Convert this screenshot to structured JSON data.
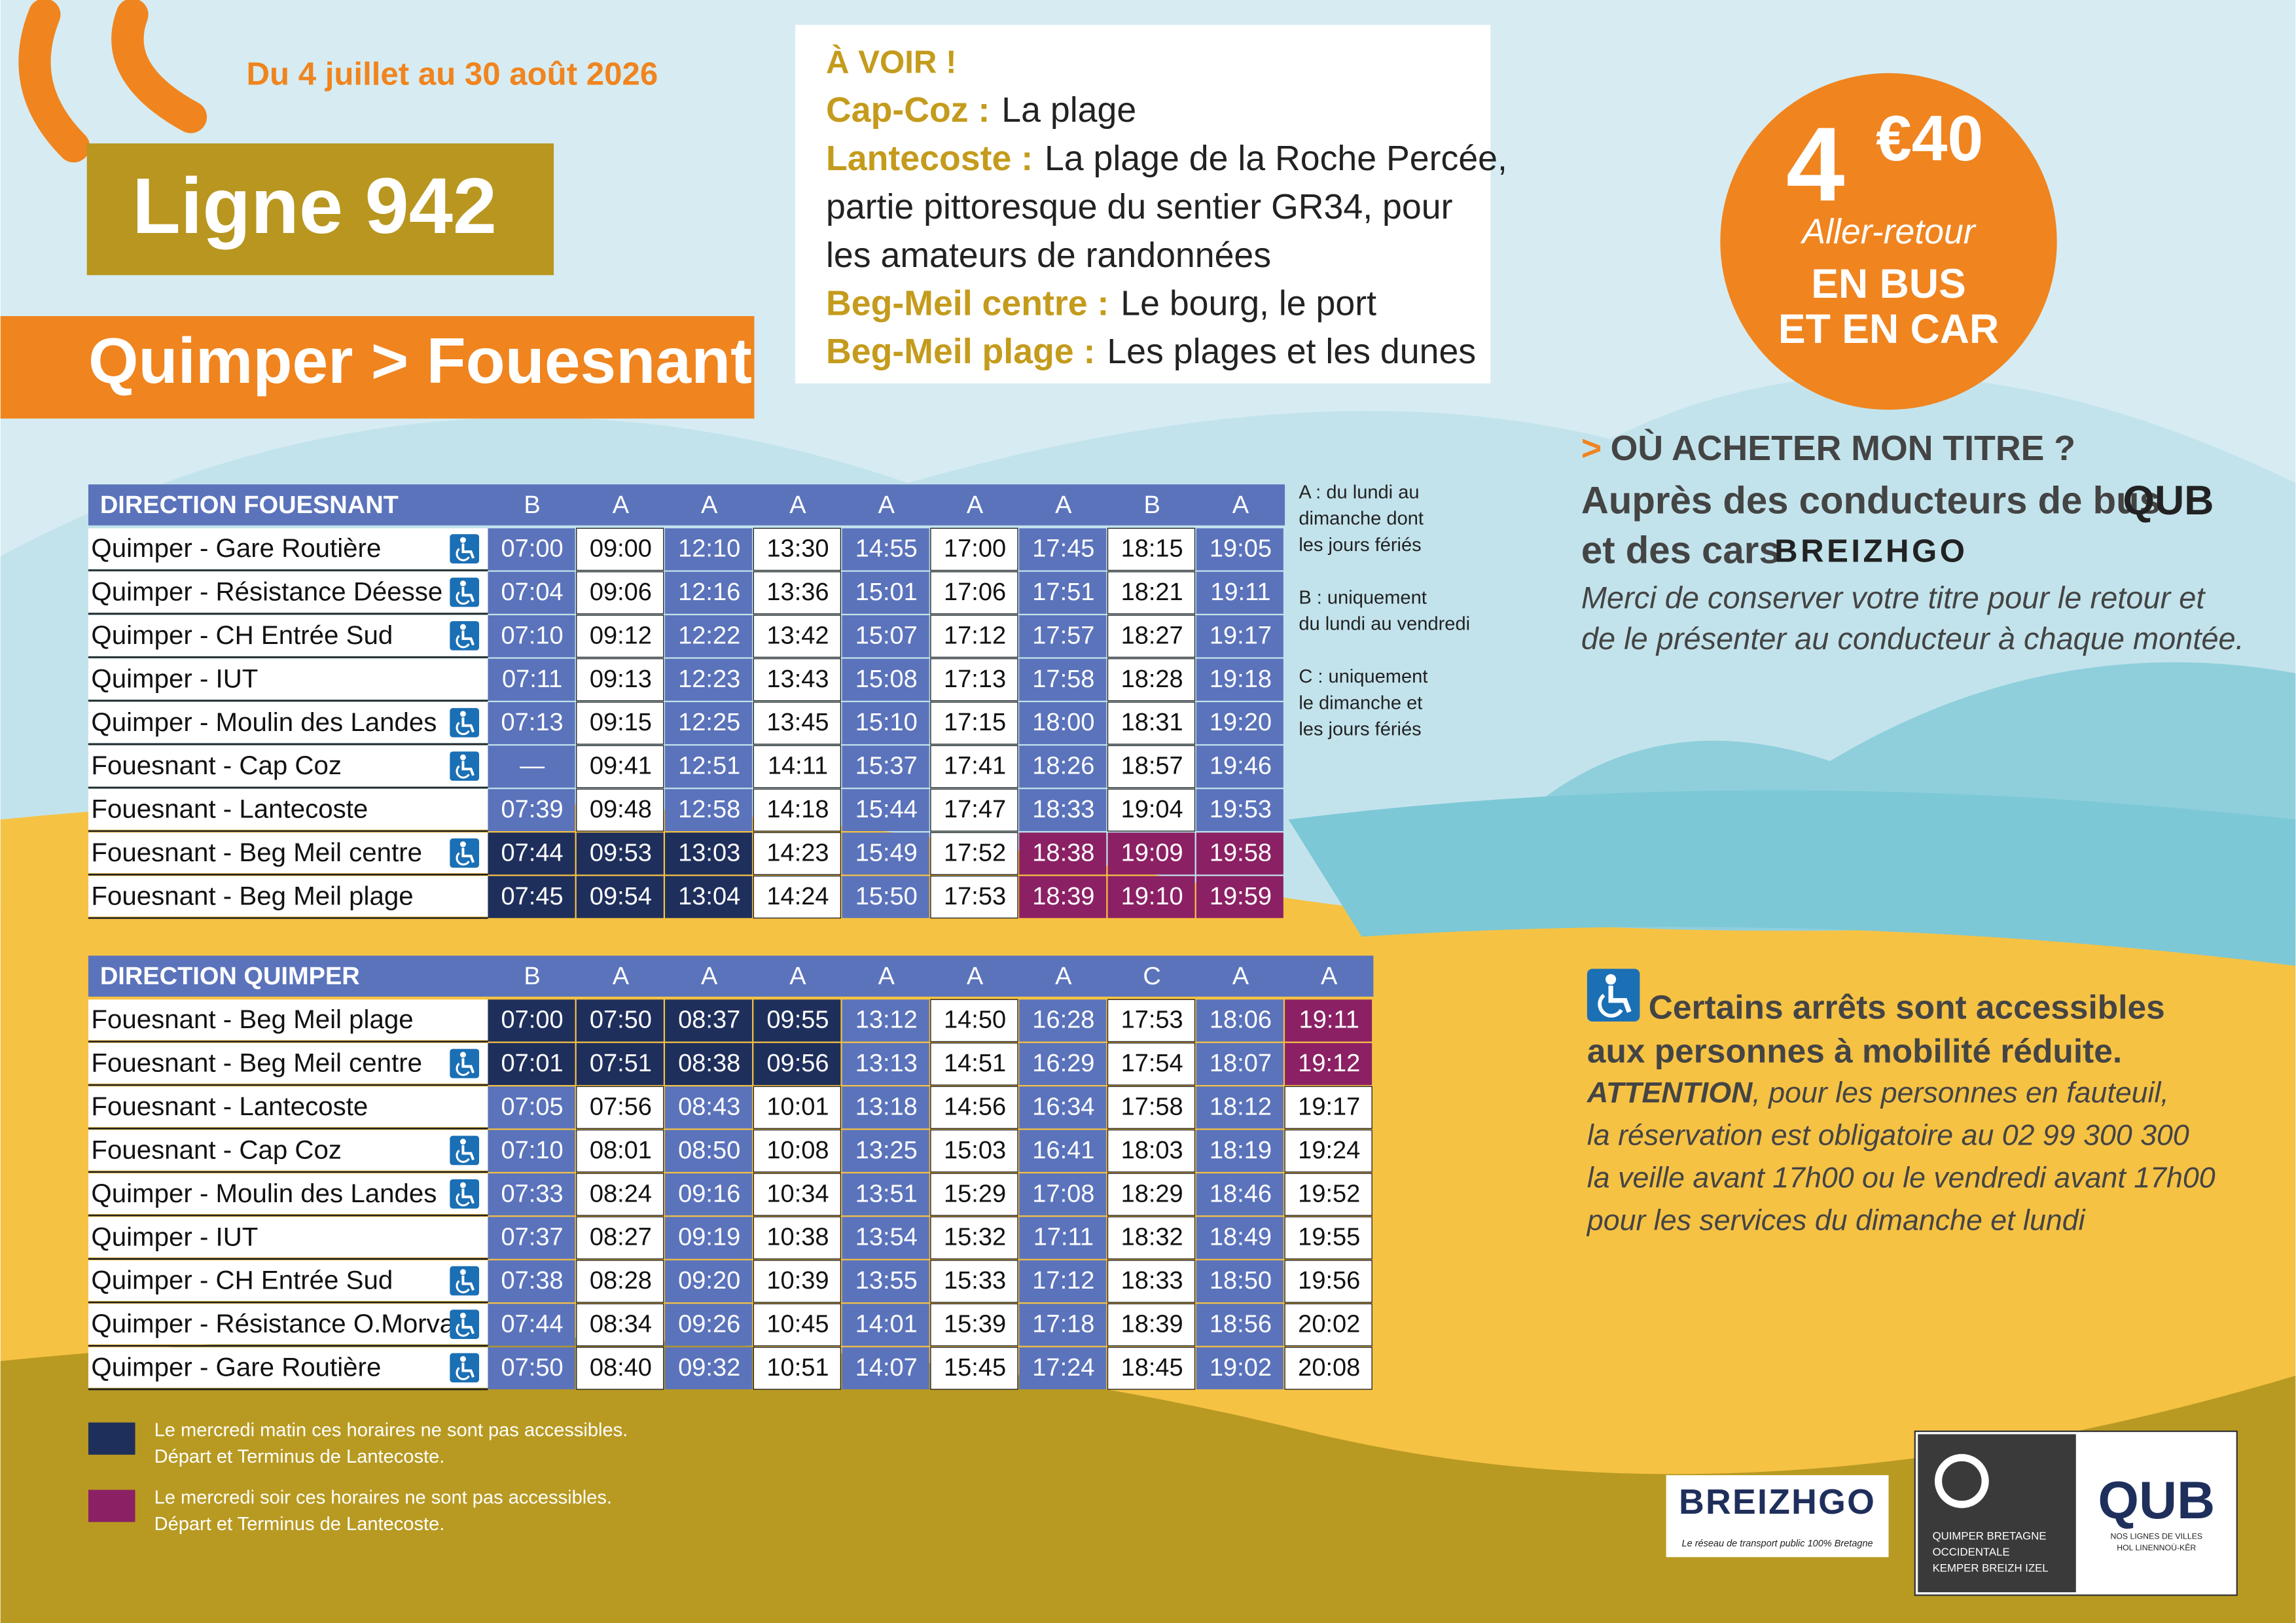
{
  "header": {
    "dates": "Du 4 juillet au 30 août 2026",
    "line": "Ligne 942",
    "route": "Quimper > Fouesnant"
  },
  "highlights": {
    "title": "À VOIR !",
    "items": [
      {
        "place": "Cap-Coz :",
        "lines": [
          "La plage"
        ]
      },
      {
        "place": "Lantecoste :",
        "lines": [
          "La plage de la Roche Percée,",
          "partie pittoresque du sentier GR34, pour",
          "les amateurs de randonnées"
        ]
      },
      {
        "place": "Beg-Meil centre :",
        "lines": [
          "Le bourg, le port"
        ]
      },
      {
        "place": "Beg-Meil plage :",
        "lines": [
          "Les plages et les dunes"
        ]
      }
    ]
  },
  "price": {
    "euros": "4",
    "cents": "€40",
    "trip": "Aller-retour",
    "mode": [
      "EN BUS",
      "ET EN CAR"
    ]
  },
  "tickets": {
    "prefix": ">",
    "title": "OÙ ACHETER MON TITRE ?",
    "line1": "Auprès des conducteurs de bus",
    "brand1": "QUB",
    "line2": "et des cars",
    "brand2": "BREIZHGO",
    "note": [
      "Merci de conserver votre titre pour le retour et",
      "de le présenter au conducteur à chaque montée."
    ]
  },
  "accessibility": {
    "title": [
      "Certains arrêts sont accessibles",
      "aux personnes à mobilité réduite."
    ],
    "attention": "ATTENTION",
    "lines": [
      ", pour les personnes en fauteuil,",
      "la réservation est obligatoire au 02 99 300 300",
      "la veille avant 17h00 ou le vendredi avant 17h00",
      "pour les services du dimanche et lundi"
    ]
  },
  "day_notes": [
    [
      "A : du lundi au",
      "dimanche dont",
      "les jours fériés"
    ],
    [
      "B : uniquement",
      "du lundi au vendredi"
    ],
    [
      "C : uniquement",
      "le dimanche et",
      "les jours fériés"
    ]
  ],
  "tables": [
    {
      "title": "DIRECTION FOUESNANT",
      "days": [
        "B",
        "A",
        "A",
        "A",
        "A",
        "A",
        "A",
        "B",
        "A"
      ],
      "rows": [
        {
          "stop": "Quimper - Gare Routière",
          "accessible": true,
          "times": [
            "07:00",
            "09:00",
            "12:10",
            "13:30",
            "14:55",
            "17:00",
            "17:45",
            "18:15",
            "19:05"
          ]
        },
        {
          "stop": "Quimper - Résistance Déesse",
          "accessible": true,
          "times": [
            "07:04",
            "09:06",
            "12:16",
            "13:36",
            "15:01",
            "17:06",
            "17:51",
            "18:21",
            "19:11"
          ]
        },
        {
          "stop": "Quimper - CH Entrée Sud",
          "accessible": true,
          "times": [
            "07:10",
            "09:12",
            "12:22",
            "13:42",
            "15:07",
            "17:12",
            "17:57",
            "18:27",
            "19:17"
          ]
        },
        {
          "stop": "Quimper - IUT",
          "accessible": false,
          "times": [
            "07:11",
            "09:13",
            "12:23",
            "13:43",
            "15:08",
            "17:13",
            "17:58",
            "18:28",
            "19:18"
          ]
        },
        {
          "stop": "Quimper - Moulin des Landes",
          "accessible": true,
          "times": [
            "07:13",
            "09:15",
            "12:25",
            "13:45",
            "15:10",
            "17:15",
            "18:00",
            "18:31",
            "19:20"
          ]
        },
        {
          "stop": "Fouesnant - Cap Coz",
          "accessible": true,
          "times": [
            "—",
            "09:41",
            "12:51",
            "14:11",
            "15:37",
            "17:41",
            "18:26",
            "18:57",
            "19:46"
          ]
        },
        {
          "stop": "Fouesnant - Lantecoste",
          "accessible": false,
          "times": [
            "07:39",
            "09:48",
            "12:58",
            "14:18",
            "15:44",
            "17:47",
            "18:33",
            "19:04",
            "19:53"
          ]
        },
        {
          "stop": "Fouesnant - Beg Meil centre",
          "accessible": true,
          "times": [
            "07:44",
            "09:53",
            "13:03",
            "14:23",
            "15:49",
            "17:52",
            "18:38",
            "19:09",
            "19:58"
          ]
        },
        {
          "stop": "Fouesnant - Beg Meil plage",
          "accessible": false,
          "times": [
            "07:45",
            "09:54",
            "13:04",
            "14:24",
            "15:50",
            "17:53",
            "18:39",
            "19:10",
            "19:59"
          ]
        }
      ]
    },
    {
      "title": "DIRECTION QUIMPER",
      "days": [
        "B",
        "A",
        "A",
        "A",
        "A",
        "A",
        "A",
        "C",
        "A",
        "A"
      ],
      "rows": [
        {
          "stop": "Fouesnant - Beg Meil plage",
          "accessible": false,
          "times": [
            "07:00",
            "07:50",
            "08:37",
            "09:55",
            "13:12",
            "14:50",
            "16:28",
            "17:53",
            "18:06",
            "19:11"
          ]
        },
        {
          "stop": "Fouesnant - Beg Meil centre",
          "accessible": true,
          "times": [
            "07:01",
            "07:51",
            "08:38",
            "09:56",
            "13:13",
            "14:51",
            "16:29",
            "17:54",
            "18:07",
            "19:12"
          ]
        },
        {
          "stop": "Fouesnant - Lantecoste",
          "accessible": false,
          "times": [
            "07:05",
            "07:56",
            "08:43",
            "10:01",
            "13:18",
            "14:56",
            "16:34",
            "17:58",
            "18:12",
            "19:17"
          ]
        },
        {
          "stop": "Fouesnant - Cap Coz",
          "accessible": true,
          "times": [
            "07:10",
            "08:01",
            "08:50",
            "10:08",
            "13:25",
            "15:03",
            "16:41",
            "18:03",
            "18:19",
            "19:24"
          ]
        },
        {
          "stop": "Quimper - Moulin des Landes",
          "accessible": true,
          "times": [
            "07:33",
            "08:24",
            "09:16",
            "10:34",
            "13:51",
            "15:29",
            "17:08",
            "18:29",
            "18:46",
            "19:52"
          ]
        },
        {
          "stop": "Quimper - IUT",
          "accessible": false,
          "times": [
            "07:37",
            "08:27",
            "09:19",
            "10:38",
            "13:54",
            "15:32",
            "17:11",
            "18:32",
            "18:49",
            "19:55"
          ]
        },
        {
          "stop": "Quimper - CH Entrée Sud",
          "accessible": true,
          "times": [
            "07:38",
            "08:28",
            "09:20",
            "10:39",
            "13:55",
            "15:33",
            "17:12",
            "18:33",
            "18:50",
            "19:56"
          ]
        },
        {
          "stop": "Quimper - Résistance O.Morvan",
          "accessible": true,
          "times": [
            "07:44",
            "08:34",
            "09:26",
            "10:45",
            "14:01",
            "15:39",
            "17:18",
            "18:39",
            "18:56",
            "20:02"
          ]
        },
        {
          "stop": "Quimper - Gare Routière",
          "accessible": true,
          "times": [
            "07:50",
            "08:40",
            "09:32",
            "10:51",
            "14:07",
            "15:45",
            "17:24",
            "18:45",
            "19:02",
            "20:08"
          ]
        }
      ]
    }
  ],
  "legend": [
    [
      "Le mercredi matin ces horaires ne sont pas accessibles.",
      "Départ et Terminus de Lantecoste."
    ],
    [
      "Le mercredi soir ces horaires ne sont pas accessibles.",
      "Départ et Terminus de Lantecoste."
    ]
  ],
  "logos": {
    "breizhgo": "BREIZHGO",
    "breizhgo_tagline": "Le réseau de transport public 100% Bretagne",
    "qbo": [
      "QUIMPER BRETAGNE",
      "OCCIDENTALE",
      "KEMPER BREIZH IZEL"
    ],
    "qub": "QUB",
    "qub_tagline": [
      "NOS LIGNES DE VILLES",
      "HOL LINENNOÙ-KÊR"
    ]
  }
}
